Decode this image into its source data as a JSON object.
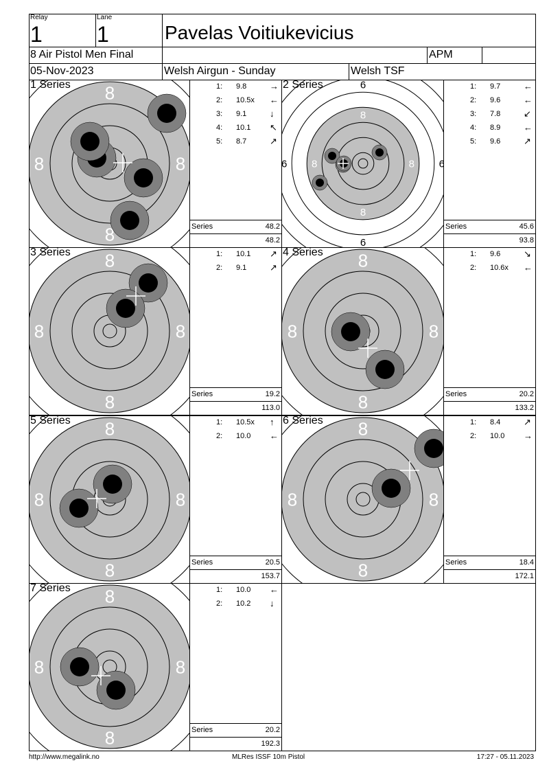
{
  "header": {
    "relay_label": "Relay",
    "relay": "1",
    "lane_label": "Lane",
    "lane": "1",
    "name": "Pavelas Voitiukevicius",
    "event": "8 Air Pistol Men Final",
    "class": "APM",
    "date": "05-Nov-2023",
    "competition": "Welsh Airgun - Sunday",
    "club": "Welsh TSF"
  },
  "series_label": "Series",
  "panels": [
    {
      "title": "1 Series",
      "shots": [
        {
          "n": "1:",
          "v": "9.8",
          "dir": "→"
        },
        {
          "n": "2:",
          "v": "10.5x",
          "dir": "←"
        },
        {
          "n": "3:",
          "v": "9.1",
          "dir": "↓"
        },
        {
          "n": "4:",
          "v": "10.1",
          "dir": "↖"
        },
        {
          "n": "5:",
          "v": "8.7",
          "dir": "↗"
        }
      ],
      "series": "48.2",
      "total": "48.2"
    },
    {
      "title": "2 Series",
      "shots": [
        {
          "n": "1:",
          "v": "9.7",
          "dir": "←"
        },
        {
          "n": "2:",
          "v": "9.6",
          "dir": "←"
        },
        {
          "n": "3:",
          "v": "7.8",
          "dir": "↙"
        },
        {
          "n": "4:",
          "v": "8.9",
          "dir": "←"
        },
        {
          "n": "5:",
          "v": "9.6",
          "dir": "↗"
        }
      ],
      "series": "45.6",
      "total": "93.8"
    },
    {
      "title": "3 Series",
      "shots": [
        {
          "n": "1:",
          "v": "10.1",
          "dir": "↗"
        },
        {
          "n": "2:",
          "v": "9.1",
          "dir": "↗"
        }
      ],
      "series": "19.2",
      "total": "113.0"
    },
    {
      "title": "4 Series",
      "shots": [
        {
          "n": "1:",
          "v": "9.6",
          "dir": "↘"
        },
        {
          "n": "2:",
          "v": "10.6x",
          "dir": "←"
        }
      ],
      "series": "20.2",
      "total": "133.2"
    },
    {
      "title": "5 Series",
      "shots": [
        {
          "n": "1:",
          "v": "10.5x",
          "dir": "↑"
        },
        {
          "n": "2:",
          "v": "10.0",
          "dir": "←"
        }
      ],
      "series": "20.5",
      "total": "153.7"
    },
    {
      "title": "6 Series",
      "shots": [
        {
          "n": "1:",
          "v": "8.4",
          "dir": "↗"
        },
        {
          "n": "2:",
          "v": "10.0",
          "dir": "→"
        }
      ],
      "series": "18.4",
      "total": "172.1"
    },
    {
      "title": "7 Series",
      "shots": [
        {
          "n": "1:",
          "v": "10.0",
          "dir": "←"
        },
        {
          "n": "2:",
          "v": "10.2",
          "dir": "↓"
        }
      ],
      "series": "20.2",
      "total": "192.3"
    }
  ],
  "colors": {
    "target_black": "#c0c0c0",
    "shot_outer": "#808080",
    "shot_inner": "#000000"
  },
  "footer": {
    "url": "http://www.megalink.no",
    "program": "MLRes ISSF 10m Pistol",
    "timestamp": "17:27 - 05.11.2023"
  }
}
